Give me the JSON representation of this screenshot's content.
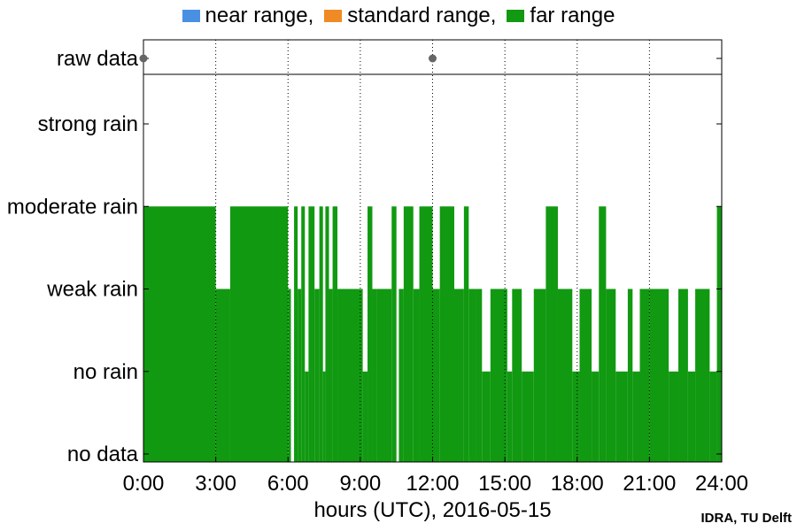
{
  "legend": {
    "items": [
      {
        "label": "near range,",
        "color": "#4a90e2"
      },
      {
        "label": "standard range,",
        "color": "#f08a24"
      },
      {
        "label": "far range",
        "color": "#119911"
      }
    ]
  },
  "credit": "IDRA, TU Delft",
  "chart_data": {
    "type": "area",
    "xlabel": "hours (UTC), 2016-05-15",
    "xlim": [
      0,
      24
    ],
    "xticks": [
      0,
      3,
      6,
      9,
      12,
      15,
      18,
      21,
      24
    ],
    "xtick_labels": [
      "0:00",
      "3:00",
      "6:00",
      "9:00",
      "12:00",
      "15:00",
      "18:00",
      "21:00",
      "24:00"
    ],
    "ylevels": [
      "no data",
      "no rain",
      "weak rain",
      "moderate rain",
      "strong rain"
    ],
    "raw_data_label": "raw data",
    "raw_data_points": [
      0.0,
      12.0
    ],
    "grid": "vertical dotted",
    "legend_position": "top",
    "series": [
      {
        "name": "far range",
        "color": "#119911",
        "segments": [
          [
            0.0,
            3.0,
            3
          ],
          [
            3.0,
            3.6,
            2
          ],
          [
            3.6,
            6.0,
            3
          ],
          [
            6.0,
            6.12,
            2
          ],
          [
            6.12,
            6.25,
            0
          ],
          [
            6.25,
            6.4,
            3
          ],
          [
            6.4,
            6.55,
            2
          ],
          [
            6.55,
            6.7,
            3
          ],
          [
            6.7,
            6.85,
            1
          ],
          [
            6.85,
            7.1,
            3
          ],
          [
            7.1,
            7.3,
            2
          ],
          [
            7.3,
            7.45,
            3
          ],
          [
            7.45,
            7.55,
            1
          ],
          [
            7.55,
            7.7,
            3
          ],
          [
            7.7,
            7.85,
            2
          ],
          [
            7.85,
            8.05,
            3
          ],
          [
            8.05,
            9.1,
            2
          ],
          [
            9.1,
            9.3,
            1
          ],
          [
            9.3,
            9.5,
            3
          ],
          [
            9.5,
            9.7,
            2
          ],
          [
            9.7,
            10.3,
            2
          ],
          [
            10.3,
            10.5,
            3
          ],
          [
            10.5,
            10.6,
            0
          ],
          [
            10.6,
            10.8,
            2
          ],
          [
            10.8,
            11.2,
            3
          ],
          [
            11.2,
            11.45,
            2
          ],
          [
            11.45,
            12.0,
            3
          ],
          [
            12.0,
            12.3,
            2
          ],
          [
            12.3,
            12.9,
            3
          ],
          [
            12.9,
            13.3,
            2
          ],
          [
            13.3,
            13.5,
            3
          ],
          [
            13.5,
            13.8,
            2
          ],
          [
            13.8,
            14.05,
            2
          ],
          [
            14.05,
            14.4,
            1
          ],
          [
            14.4,
            15.1,
            2
          ],
          [
            15.1,
            15.3,
            1
          ],
          [
            15.3,
            15.7,
            2
          ],
          [
            15.7,
            16.2,
            1
          ],
          [
            16.2,
            16.7,
            2
          ],
          [
            16.7,
            17.2,
            3
          ],
          [
            17.2,
            17.8,
            2
          ],
          [
            17.8,
            18.1,
            1
          ],
          [
            18.1,
            18.6,
            2
          ],
          [
            18.6,
            18.9,
            1
          ],
          [
            18.9,
            19.2,
            3
          ],
          [
            19.2,
            19.6,
            2
          ],
          [
            19.6,
            20.1,
            1
          ],
          [
            20.1,
            20.3,
            2
          ],
          [
            20.3,
            20.6,
            1
          ],
          [
            20.6,
            21.0,
            2
          ],
          [
            21.0,
            21.8,
            2
          ],
          [
            21.8,
            22.2,
            1
          ],
          [
            22.2,
            22.6,
            2
          ],
          [
            22.6,
            22.9,
            1
          ],
          [
            22.9,
            23.5,
            2
          ],
          [
            23.5,
            23.8,
            1
          ],
          [
            23.8,
            24.0,
            3
          ]
        ]
      }
    ]
  }
}
